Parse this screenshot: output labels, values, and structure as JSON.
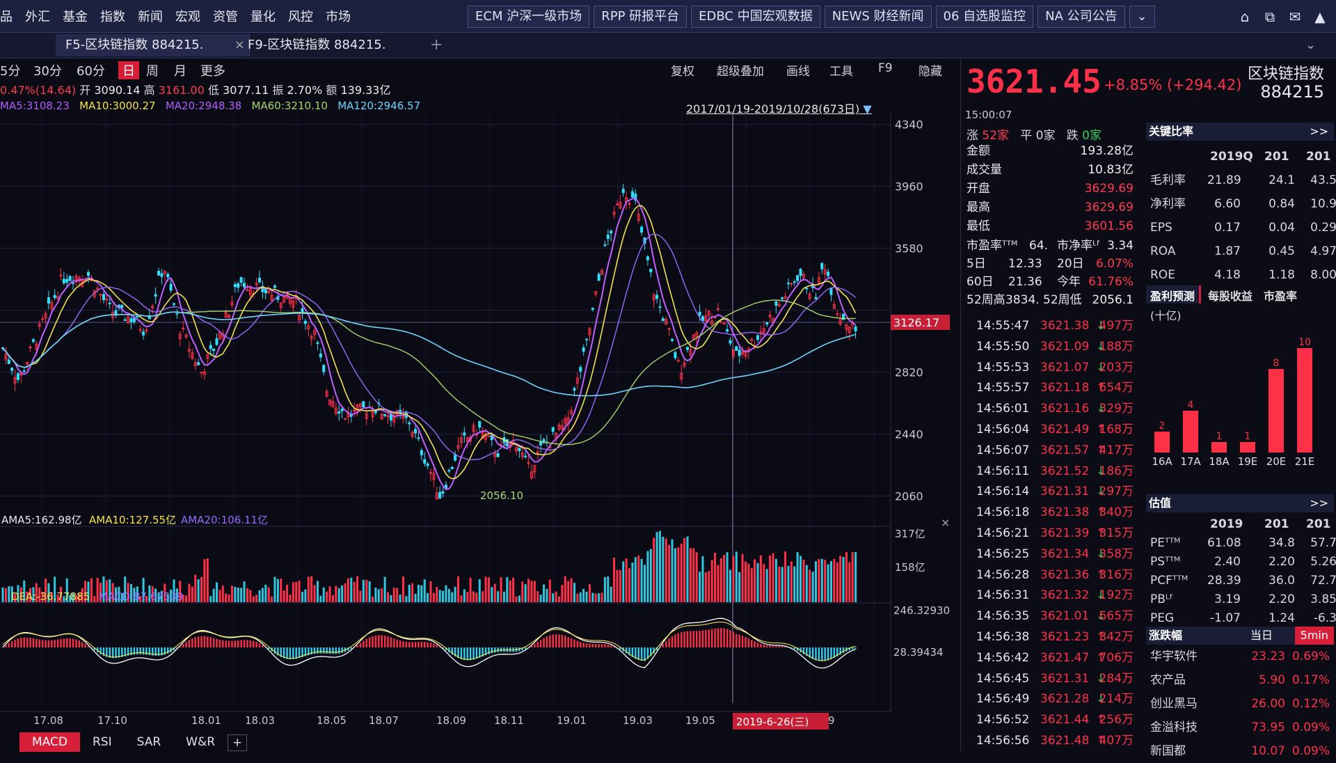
{
  "menu": [
    "品",
    "外汇",
    "基金",
    "指数",
    "新闻",
    "宏观",
    "资管",
    "量化",
    "风控",
    "市场"
  ],
  "quick_tabs": [
    "ECM 沪深一级市场",
    "RPP 研报平台",
    "EDBC 中国宏观数据",
    "NEWS 财经新闻",
    "06 自选股监控",
    "NA 公司公告"
  ],
  "doc_tabs": [
    "F5-区块链指数 884215.",
    "F9-区块链指数 884215."
  ],
  "periods": [
    "5分",
    "30分",
    "60分",
    "日",
    "周",
    "月",
    "更多"
  ],
  "chart_tools": [
    "复权",
    "超级叠加",
    "画线",
    "工具",
    "F9",
    "隐藏"
  ],
  "info": {
    "chg": "0.47%(14.64)",
    "open_label": "开",
    "open": "3090.14",
    "high_label": "高",
    "high": "3161.00",
    "low_label": "低",
    "low": "3077.11",
    "amp_label": "振",
    "amp": "2.70%",
    "amt_label": "额",
    "amt": "139.33亿"
  },
  "ma": {
    "ma5": "MA5:3108.23",
    "ma10": "MA10:3000.27",
    "ma20": "MA20:2948.38",
    "ma60": "MA60:3210.10",
    "ma120": "MA120:2946.57"
  },
  "range_label": "2017/01/19-2019/10/28(673日)",
  "price_axis": [
    "4340",
    "3960",
    "3580",
    "3126.17",
    "2820",
    "2440",
    "2060"
  ],
  "low_label": "2056.10",
  "volume": {
    "ama5": "AMA5:162.98亿",
    "ama10": "AMA10:127.55亿",
    "ama20": "AMA20:106.11亿",
    "axis": [
      "317亿",
      "158亿"
    ]
  },
  "macd": {
    "dea": "DEA:-36.77885",
    "macd": "MACD:87.67539",
    "axis": [
      "246.32930",
      "28.39434"
    ]
  },
  "date_axis": [
    "17.08",
    "17.10",
    "18.01",
    "18.03",
    "18.05",
    "18.07",
    "18.09",
    "18.11",
    "19.01",
    "19.03",
    "19.05",
    "9"
  ],
  "cursor_date": "2019-6-26(三)",
  "bottom_tabs": [
    "MACD",
    "RSI",
    "SAR",
    "W&R"
  ],
  "quote": {
    "price": "3621.45",
    "change": "+8.85% (+294.42)",
    "name": "区块链指数",
    "code": "884215",
    "time": "15:00:07",
    "counts": {
      "up_label": "涨",
      "up": "52家",
      "flat_label": "平",
      "flat": "0家",
      "down_label": "跌",
      "down": "0家"
    },
    "stats": [
      {
        "k": "金额",
        "v": "193.28亿",
        "c": "white"
      },
      {
        "k": "成交量",
        "v": "10.83亿",
        "c": "white"
      },
      {
        "k": "开盘",
        "v": "3629.69",
        "c": "red"
      },
      {
        "k": "最高",
        "v": "3629.69",
        "c": "red"
      },
      {
        "k": "最低",
        "v": "3601.56",
        "c": "red"
      }
    ],
    "pe": {
      "label": "市盈率ᵀᵀᴹ",
      "value": "64.",
      "pb_label": "市净率ᴸᶠ",
      "pb": "3.34"
    },
    "perf": [
      {
        "k1": "5日",
        "v1": "12.33",
        "k2": "20日",
        "v2": "6.07%"
      },
      {
        "k1": "60日",
        "v1": "21.36",
        "k2": "今年",
        "v2": "61.76%"
      }
    ],
    "w52": {
      "hi_label": "52周高",
      "hi": "3834.",
      "lo_label": "52周低",
      "lo": "2056.1"
    }
  },
  "ticks": [
    {
      "t": "14:55:47",
      "p": "3621.38",
      "d": "down",
      "v": "497万"
    },
    {
      "t": "14:55:50",
      "p": "3621.09",
      "d": "down",
      "v": "188万"
    },
    {
      "t": "14:55:53",
      "p": "3621.07",
      "d": "down",
      "v": "203万"
    },
    {
      "t": "14:55:57",
      "p": "3621.18",
      "d": "up",
      "v": "654万"
    },
    {
      "t": "14:56:01",
      "p": "3621.16",
      "d": "down",
      "v": "329万"
    },
    {
      "t": "14:56:04",
      "p": "3621.49",
      "d": "up",
      "v": "168万"
    },
    {
      "t": "14:56:07",
      "p": "3621.57",
      "d": "up",
      "v": "417万"
    },
    {
      "t": "14:56:11",
      "p": "3621.52",
      "d": "down",
      "v": "186万"
    },
    {
      "t": "14:56:14",
      "p": "3621.31",
      "d": "down",
      "v": "297万"
    },
    {
      "t": "14:56:18",
      "p": "3621.38",
      "d": "up",
      "v": "340万"
    },
    {
      "t": "14:56:21",
      "p": "3621.39",
      "d": "up",
      "v": "315万"
    },
    {
      "t": "14:56:25",
      "p": "3621.34",
      "d": "down",
      "v": "358万"
    },
    {
      "t": "14:56:28",
      "p": "3621.36",
      "d": "up",
      "v": "316万"
    },
    {
      "t": "14:56:31",
      "p": "3621.32",
      "d": "down",
      "v": "192万"
    },
    {
      "t": "14:56:35",
      "p": "3621.01",
      "d": "down",
      "v": "665万"
    },
    {
      "t": "14:56:38",
      "p": "3621.23",
      "d": "up",
      "v": "342万"
    },
    {
      "t": "14:56:42",
      "p": "3621.47",
      "d": "up",
      "v": "706万"
    },
    {
      "t": "14:56:45",
      "p": "3621.31",
      "d": "down",
      "v": "284万"
    },
    {
      "t": "14:56:49",
      "p": "3621.28",
      "d": "down",
      "v": "214万"
    },
    {
      "t": "14:56:52",
      "p": "3621.44",
      "d": "up",
      "v": "256万"
    },
    {
      "t": "14:56:56",
      "p": "3621.48",
      "d": "up",
      "v": "407万"
    }
  ],
  "key_ratios": {
    "title": "关键比率",
    "more": ">>",
    "headers": [
      "",
      "2019Q",
      "201",
      "201"
    ],
    "rows": [
      [
        "毛利率",
        "21.89",
        "24.1",
        "43.5"
      ],
      [
        "净利率",
        "6.60",
        "0.84",
        "10.9"
      ],
      [
        "EPS",
        "0.17",
        "0.04",
        "0.29"
      ],
      [
        "ROA",
        "1.87",
        "0.45",
        "4.97"
      ],
      [
        "ROE",
        "4.18",
        "1.18",
        "8.00"
      ]
    ]
  },
  "forecast": {
    "tabs": [
      "盈利预测",
      "每股收益",
      "市盈率"
    ],
    "unit": "(十亿)",
    "categories": [
      "16A",
      "17A",
      "18A",
      "19E",
      "20E",
      "21E"
    ],
    "values": [
      2,
      4,
      1,
      1,
      8,
      10
    ]
  },
  "valuation": {
    "title": "估值",
    "more": ">>",
    "headers": [
      "",
      "2019",
      "201",
      "201"
    ],
    "rows": [
      [
        "PEᵀᵀᴹ",
        "61.08",
        "34.8",
        "57.7"
      ],
      [
        "PSᵀᵀᴹ",
        "2.40",
        "2.20",
        "5.26"
      ],
      [
        "PCFᵀᵀᴹ",
        "28.39",
        "36.0",
        "72.7"
      ],
      [
        "PBᴸᶠ",
        "3.19",
        "2.20",
        "3.85"
      ],
      [
        "PEG",
        "-1.07",
        "1.24",
        "-6.3"
      ]
    ]
  },
  "movers": {
    "title": "涨跌幅",
    "tab1": "当日",
    "tab2": "5min",
    "rows": [
      [
        "华宇软件",
        "23.23",
        "0.69%"
      ],
      [
        "农产品",
        "5.90",
        "0.17%"
      ],
      [
        "创业黑马",
        "26.00",
        "0.12%"
      ],
      [
        "金溢科技",
        "73.95",
        "0.09%"
      ],
      [
        "新国都",
        "10.07",
        "0.09%"
      ]
    ]
  },
  "colors": {
    "up": "#ff3148",
    "down": "#2fd25a",
    "accent": "#d81f3a"
  }
}
